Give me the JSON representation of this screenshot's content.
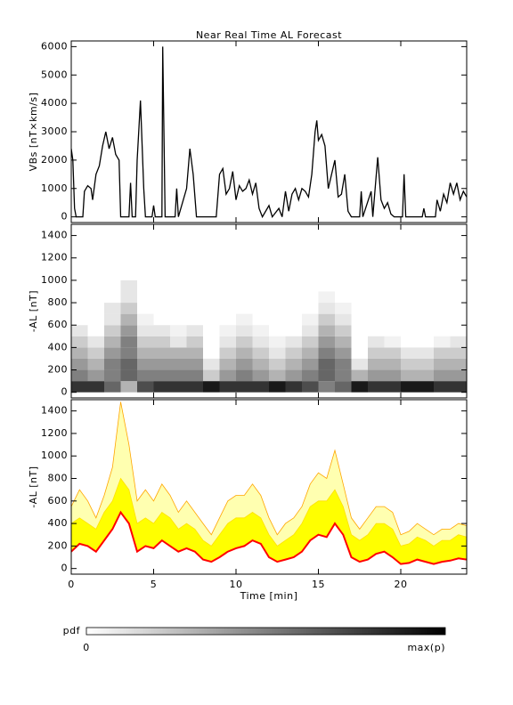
{
  "chart_data": [
    {
      "type": "line",
      "title": "Near Real Time AL Forecast",
      "ylabel": "VBs [nT×km/s]",
      "xlim": [
        0,
        24
      ],
      "xticks": [
        0,
        5,
        10,
        15,
        20
      ],
      "ylim": [
        -200,
        6200
      ],
      "yticks": [
        0,
        1000,
        2000,
        3000,
        4000,
        5000,
        6000
      ],
      "x": [
        0,
        0.1,
        0.2,
        0.3,
        0.7,
        0.8,
        1.0,
        1.2,
        1.3,
        1.5,
        1.7,
        1.9,
        2.1,
        2.3,
        2.5,
        2.7,
        2.9,
        3.0,
        3.5,
        3.6,
        3.7,
        3.9,
        4.0,
        4.2,
        4.4,
        4.5,
        4.9,
        5.0,
        5.1,
        5.5,
        5.55,
        5.7,
        6.3,
        6.4,
        6.5,
        7.0,
        7.2,
        7.4,
        7.6,
        8.8,
        9.0,
        9.2,
        9.4,
        9.6,
        9.8,
        10.0,
        10.2,
        10.4,
        10.6,
        10.8,
        11.0,
        11.2,
        11.4,
        11.6,
        12.0,
        12.2,
        12.6,
        12.8,
        13.0,
        13.2,
        13.4,
        13.6,
        13.8,
        14.0,
        14.2,
        14.4,
        14.6,
        14.8,
        14.9,
        15.0,
        15.2,
        15.4,
        15.6,
        15.8,
        16.0,
        16.2,
        16.4,
        16.6,
        16.8,
        17.0,
        17.5,
        17.6,
        17.7,
        18.2,
        18.3,
        18.6,
        18.8,
        19.0,
        19.2,
        19.4,
        19.6,
        20.1,
        20.2,
        20.3,
        21.3,
        21.4,
        21.5,
        22.1,
        22.2,
        22.4,
        22.6,
        22.8,
        23.0,
        23.2,
        23.4,
        23.6,
        23.8,
        24.0
      ],
      "series": [
        {
          "color": "#000000",
          "values": [
            2400,
            2000,
            300,
            0,
            0,
            900,
            1100,
            1000,
            600,
            1500,
            1800,
            2500,
            3000,
            2400,
            2800,
            2200,
            2000,
            0,
            0,
            1200,
            0,
            0,
            2000,
            4100,
            1000,
            0,
            0,
            400,
            0,
            0,
            6000,
            0,
            0,
            1000,
            0,
            1000,
            2400,
            1500,
            0,
            0,
            1500,
            1700,
            800,
            1000,
            1600,
            600,
            1100,
            900,
            1000,
            1300,
            800,
            1200,
            300,
            0,
            400,
            0,
            300,
            0,
            900,
            200,
            800,
            1000,
            600,
            1000,
            900,
            700,
            1500,
            3000,
            3400,
            2700,
            2900,
            2500,
            1000,
            1500,
            2000,
            700,
            800,
            1500,
            200,
            0,
            0,
            900,
            0,
            900,
            0,
            2100,
            600,
            300,
            500,
            100,
            0,
            0,
            1500,
            0,
            0,
            300,
            0,
            0,
            600,
            200,
            800,
            500,
            1200,
            800,
            1200,
            600,
            900,
            700
          ]
        }
      ]
    },
    {
      "type": "heatmap",
      "ylabel": "-AL [nT]",
      "xlim": [
        0,
        24
      ],
      "xticks": [
        0,
        5,
        10,
        15,
        20
      ],
      "ylim": [
        -50,
        1500
      ],
      "yticks": [
        0,
        200,
        400,
        600,
        800,
        1000,
        1200,
        1400
      ],
      "xbins": [
        0,
        1,
        2,
        3,
        4,
        5,
        6,
        7,
        8,
        9,
        10,
        11,
        12,
        13,
        14,
        15,
        16,
        17,
        18,
        19,
        20,
        21,
        22,
        23,
        24
      ],
      "ybins": [
        0,
        100,
        200,
        300,
        400,
        500,
        600,
        700,
        800,
        900,
        1000
      ],
      "z": [
        [
          0.8,
          0.5,
          0.4,
          0.3,
          0.2,
          0.1,
          0,
          0,
          0,
          0
        ],
        [
          0.8,
          0.4,
          0.3,
          0.2,
          0.1,
          0,
          0,
          0,
          0,
          0
        ],
        [
          0.6,
          0.5,
          0.5,
          0.4,
          0.3,
          0.2,
          0.1,
          0.1,
          0,
          0
        ],
        [
          0.3,
          0.6,
          0.6,
          0.5,
          0.5,
          0.4,
          0.3,
          0.2,
          0.1,
          0.1
        ],
        [
          0.7,
          0.5,
          0.4,
          0.3,
          0.2,
          0.1,
          0.05,
          0,
          0,
          0
        ],
        [
          0.8,
          0.5,
          0.4,
          0.3,
          0.2,
          0.1,
          0,
          0,
          0,
          0
        ],
        [
          0.8,
          0.5,
          0.4,
          0.3,
          0.1,
          0.05,
          0,
          0,
          0,
          0
        ],
        [
          0.8,
          0.5,
          0.4,
          0.3,
          0.2,
          0.1,
          0,
          0,
          0,
          0
        ],
        [
          0.9,
          0.2,
          0.1,
          0,
          0,
          0,
          0,
          0,
          0,
          0
        ],
        [
          0.8,
          0.4,
          0.3,
          0.2,
          0.1,
          0.05,
          0,
          0,
          0,
          0
        ],
        [
          0.8,
          0.5,
          0.4,
          0.3,
          0.2,
          0.1,
          0.05,
          0,
          0,
          0
        ],
        [
          0.8,
          0.4,
          0.3,
          0.2,
          0.1,
          0.05,
          0,
          0,
          0,
          0
        ],
        [
          0.9,
          0.3,
          0.2,
          0.1,
          0.05,
          0,
          0,
          0,
          0,
          0
        ],
        [
          0.8,
          0.4,
          0.3,
          0.2,
          0.1,
          0,
          0,
          0,
          0,
          0
        ],
        [
          0.7,
          0.5,
          0.4,
          0.3,
          0.2,
          0.1,
          0.05,
          0,
          0,
          0
        ],
        [
          0.5,
          0.6,
          0.6,
          0.5,
          0.4,
          0.3,
          0.2,
          0.1,
          0.05,
          0
        ],
        [
          0.6,
          0.5,
          0.5,
          0.4,
          0.3,
          0.2,
          0.1,
          0.05,
          0,
          0
        ],
        [
          0.9,
          0.3,
          0.1,
          0,
          0,
          0,
          0,
          0,
          0,
          0
        ],
        [
          0.8,
          0.4,
          0.3,
          0.2,
          0.1,
          0,
          0,
          0,
          0,
          0
        ],
        [
          0.8,
          0.4,
          0.3,
          0.2,
          0.05,
          0,
          0,
          0,
          0,
          0
        ],
        [
          0.9,
          0.3,
          0.2,
          0.1,
          0,
          0,
          0,
          0,
          0,
          0
        ],
        [
          0.9,
          0.3,
          0.2,
          0.1,
          0,
          0,
          0,
          0,
          0,
          0
        ],
        [
          0.8,
          0.4,
          0.3,
          0.2,
          0.05,
          0,
          0,
          0,
          0,
          0
        ],
        [
          0.8,
          0.4,
          0.3,
          0.2,
          0.1,
          0,
          0,
          0,
          0,
          0
        ]
      ],
      "colorbar": {
        "label": "pdf",
        "min_label": "0",
        "max_label": "max(p)"
      }
    },
    {
      "type": "band",
      "ylabel": "-AL [nT]",
      "xlabel": "Time [min]",
      "xlim": [
        0,
        24
      ],
      "xticks": [
        0,
        5,
        10,
        15,
        20
      ],
      "ylim": [
        -50,
        1500
      ],
      "yticks": [
        0,
        200,
        400,
        600,
        800,
        1000,
        1200,
        1400
      ],
      "x": [
        0,
        0.5,
        1,
        1.5,
        2,
        2.5,
        3,
        3.5,
        4,
        4.5,
        5,
        5.5,
        6,
        6.5,
        7,
        7.5,
        8,
        8.5,
        9,
        9.5,
        10,
        10.5,
        11,
        11.5,
        12,
        12.5,
        13,
        13.5,
        14,
        14.5,
        15,
        15.5,
        16,
        16.5,
        17,
        17.5,
        18,
        18.5,
        19,
        19.5,
        20,
        20.5,
        21,
        21.5,
        22,
        22.5,
        23,
        23.5,
        24
      ],
      "series": [
        {
          "color": "#ffa500",
          "fill": "#ffffb0",
          "values": [
            550,
            700,
            600,
            450,
            650,
            900,
            1480,
            1100,
            600,
            700,
            600,
            750,
            650,
            500,
            600,
            500,
            400,
            300,
            450,
            600,
            650,
            650,
            750,
            650,
            450,
            300,
            400,
            450,
            550,
            750,
            850,
            800,
            1050,
            750,
            450,
            350,
            450,
            550,
            550,
            500,
            300,
            330,
            400,
            350,
            300,
            350,
            350,
            400,
            380
          ]
        },
        {
          "color": "#ffe000",
          "fill": "#ffff00",
          "values": [
            400,
            450,
            400,
            350,
            500,
            600,
            800,
            700,
            400,
            450,
            400,
            500,
            450,
            350,
            400,
            350,
            250,
            200,
            300,
            400,
            450,
            450,
            500,
            450,
            300,
            200,
            250,
            300,
            400,
            550,
            600,
            600,
            700,
            550,
            300,
            250,
            300,
            400,
            400,
            350,
            200,
            220,
            280,
            250,
            200,
            250,
            250,
            300,
            280
          ]
        },
        {
          "color": "#ff0000",
          "values": [
            150,
            220,
            200,
            150,
            250,
            350,
            500,
            400,
            150,
            200,
            180,
            250,
            200,
            150,
            180,
            150,
            80,
            60,
            100,
            150,
            180,
            200,
            250,
            220,
            100,
            60,
            80,
            100,
            150,
            250,
            300,
            280,
            400,
            300,
            100,
            60,
            80,
            130,
            150,
            100,
            40,
            50,
            80,
            60,
            40,
            60,
            70,
            90,
            80
          ]
        }
      ]
    }
  ]
}
